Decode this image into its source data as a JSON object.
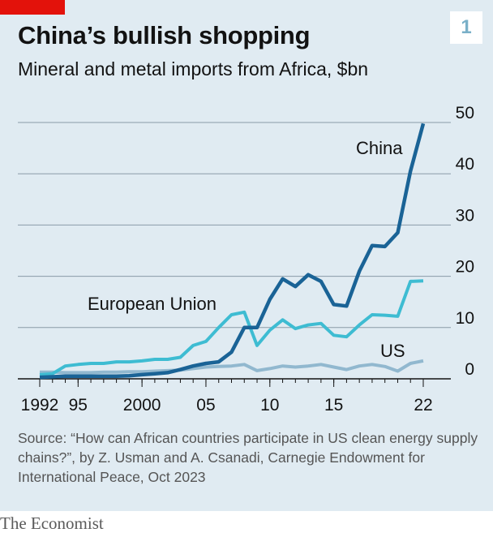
{
  "title": "China’s bullish shopping",
  "subtitle": "Mineral and metal imports from Africa, $bn",
  "chart_number": "1",
  "source": "Source: “How can African countries participate in US clean energy supply chains?”, by Z. Usman and A. Csanadi, Carnegie Endowment for International Peace, Oct 2023",
  "brand": "The Economist",
  "colors": {
    "china": "#1a6396",
    "eu": "#3ebcd2",
    "us": "#91b8cf",
    "grid": "#8a9ba8",
    "accent": "#e3120b"
  },
  "chart_data": {
    "type": "line",
    "title": "China’s bullish shopping",
    "subtitle": "Mineral and metal imports from Africa, $bn",
    "x": [
      1992,
      1993,
      1994,
      1995,
      1996,
      1997,
      1998,
      1999,
      2000,
      2001,
      2002,
      2003,
      2004,
      2005,
      2006,
      2007,
      2008,
      2009,
      2010,
      2011,
      2012,
      2013,
      2014,
      2015,
      2016,
      2017,
      2018,
      2019,
      2020,
      2021,
      2022
    ],
    "x_tick_values": [
      1992,
      1995,
      2000,
      2005,
      2010,
      2015,
      2022
    ],
    "x_tick_labels": [
      "1992",
      "95",
      "2000",
      "05",
      "10",
      "15",
      "22"
    ],
    "ylim": [
      0,
      50
    ],
    "y_ticks": [
      0,
      10,
      20,
      30,
      40,
      50
    ],
    "y_axis_position": "right",
    "grid": true,
    "series": [
      {
        "name": "China",
        "color_key": "china",
        "values": [
          0.3,
          0.4,
          0.5,
          0.5,
          0.5,
          0.5,
          0.5,
          0.6,
          0.8,
          1.0,
          1.2,
          1.8,
          2.5,
          3.0,
          3.3,
          5.2,
          10.0,
          10.0,
          15.5,
          19.5,
          18.0,
          20.3,
          19.0,
          14.5,
          14.2,
          21.0,
          26.0,
          25.8,
          28.5,
          40.5,
          49.8
        ]
      },
      {
        "name": "European Union",
        "color_key": "eu",
        "values": [
          0.8,
          1.0,
          2.5,
          2.8,
          3.0,
          3.0,
          3.3,
          3.3,
          3.5,
          3.8,
          3.8,
          4.2,
          6.5,
          7.3,
          10.0,
          12.5,
          13.0,
          6.5,
          9.5,
          11.5,
          9.8,
          10.5,
          10.8,
          8.5,
          8.2,
          10.5,
          12.5,
          12.4,
          12.2,
          19.0,
          19.1
        ]
      },
      {
        "name": "US",
        "color_key": "us",
        "values": [
          1.3,
          1.3,
          1.2,
          1.2,
          1.2,
          1.3,
          1.3,
          1.4,
          1.4,
          1.5,
          1.6,
          1.7,
          2.0,
          2.3,
          2.4,
          2.5,
          2.8,
          1.6,
          2.0,
          2.5,
          2.3,
          2.5,
          2.8,
          2.3,
          1.8,
          2.5,
          2.8,
          2.4,
          1.5,
          3.0,
          3.5
        ]
      }
    ]
  }
}
